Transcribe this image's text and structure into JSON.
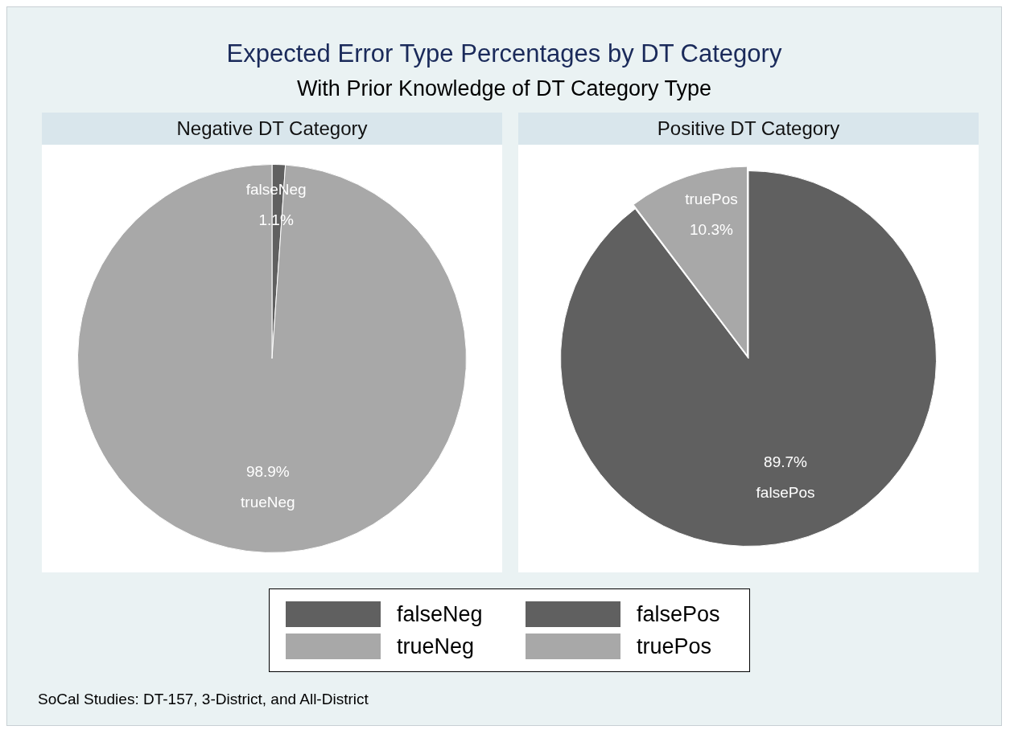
{
  "chart_data": [
    {
      "type": "other",
      "title": "Expected Error Type Percentages by DT Category",
      "subtitle": "With Prior Knowledge of DT Category Type",
      "annotations": [
        "SoCal Studies: DT-157, 3-District, and All-District"
      ]
    },
    {
      "type": "pie",
      "title": "Negative DT Category",
      "categories": [
        "falseNeg",
        "trueNeg"
      ],
      "values": [
        1.1,
        98.9
      ],
      "colors": [
        "#606060",
        "#a8a8a8"
      ],
      "value_labels": [
        "1.1%",
        "98.9%"
      ],
      "legend": "bottom"
    },
    {
      "type": "pie",
      "title": "Positive DT Category",
      "categories": [
        "falsePos",
        "truePos"
      ],
      "values": [
        89.7,
        10.3
      ],
      "colors": [
        "#606060",
        "#a8a8a8"
      ],
      "value_labels": [
        "89.7%",
        "10.3%"
      ],
      "legend": "bottom"
    }
  ]
}
